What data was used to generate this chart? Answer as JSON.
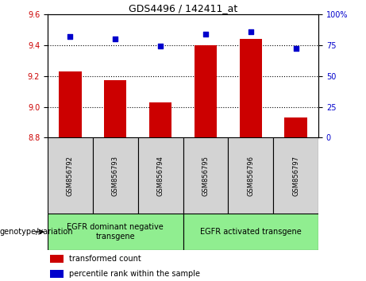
{
  "title": "GDS4496 / 142411_at",
  "samples": [
    "GSM856792",
    "GSM856793",
    "GSM856794",
    "GSM856795",
    "GSM856796",
    "GSM856797"
  ],
  "red_values": [
    9.23,
    9.17,
    9.03,
    9.4,
    9.44,
    8.93
  ],
  "blue_values": [
    82,
    80,
    74,
    84,
    86,
    72
  ],
  "ylim_left": [
    8.8,
    9.6
  ],
  "ylim_right": [
    0,
    100
  ],
  "yticks_left": [
    8.8,
    9.0,
    9.2,
    9.4,
    9.6
  ],
  "yticks_right": [
    0,
    25,
    50,
    75,
    100
  ],
  "red_color": "#CC0000",
  "blue_color": "#0000CC",
  "bar_bottom": 8.8,
  "group1_label": "EGFR dominant negative\ntransgene",
  "group2_label": "EGFR activated transgene",
  "genotype_label": "genotype/variation",
  "legend_red": "transformed count",
  "legend_blue": "percentile rank within the sample",
  "group1_indices": [
    0,
    1,
    2
  ],
  "group2_indices": [
    3,
    4,
    5
  ],
  "dotted_yticks": [
    9.0,
    9.2,
    9.4
  ],
  "sample_box_color": "#D3D3D3",
  "group_box_color": "#90EE90",
  "bar_width": 0.5,
  "title_fontsize": 9,
  "tick_fontsize": 7,
  "label_fontsize": 7,
  "sample_fontsize": 6,
  "group_fontsize": 7
}
